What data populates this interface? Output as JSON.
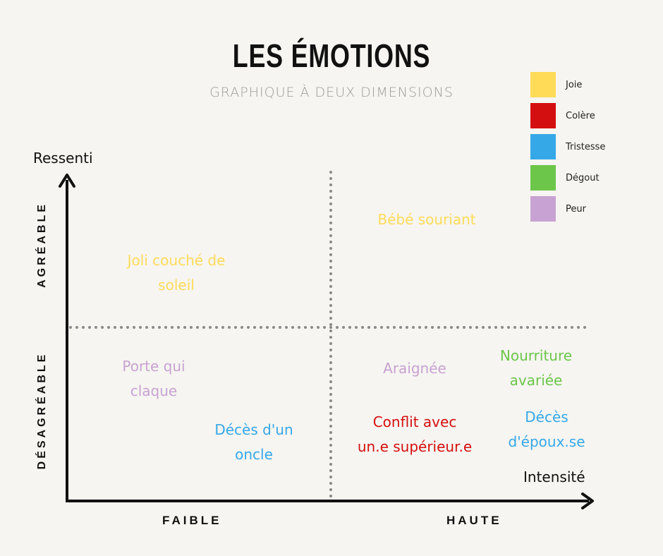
{
  "title": "LES ÉMOTIONS",
  "subtitle": "GRAPHIQUE À DEUX DIMENSIONS",
  "legend": [
    {
      "label": "Joie",
      "color": "#ffdb58"
    },
    {
      "label": "Colère",
      "color": "#d40f0f"
    },
    {
      "label": "Tristesse",
      "color": "#35a8e8"
    },
    {
      "label": "Dégout",
      "color": "#6cc64a"
    },
    {
      "label": "Peur",
      "color": "#c8a2d2"
    }
  ],
  "axes": {
    "y_label": "Ressenti",
    "x_label": "Intensité",
    "y_top": "AGRÉABLE",
    "y_bottom": "DÉSAGRÉABLE",
    "x_left": "FAIBLE",
    "x_right": "HAUTE"
  },
  "items": {
    "bebe": {
      "line1": "Bébé souriant",
      "color": "#ffdb58"
    },
    "coucher": {
      "line1": "Joli couché de",
      "line2": "soleil",
      "color": "#ffdb58"
    },
    "porte": {
      "line1": "Porte qui",
      "line2": "claque",
      "color": "#c8a2d2"
    },
    "oncle": {
      "line1": "Décès d'un",
      "line2": "oncle",
      "color": "#35a8e8"
    },
    "araignee": {
      "line1": "Araignée",
      "color": "#c8a2d2"
    },
    "nourriture": {
      "line1": "Nourriture",
      "line2": "avariée",
      "color": "#6cc64a"
    },
    "conflit": {
      "line1": "Conflit avec",
      "line2": "un.e supérieur.e",
      "color": "#d40f0f"
    },
    "epoux": {
      "line1": "Décès",
      "line2": "d'époux.se",
      "color": "#35a8e8"
    }
  }
}
